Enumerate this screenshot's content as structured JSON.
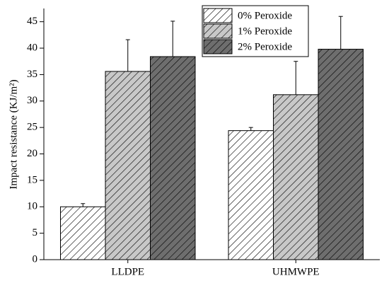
{
  "chart_data": {
    "type": "bar",
    "y_label": "Impact resistance (KJ/m²)",
    "categories": [
      "LLDPE",
      "UHMWPE"
    ],
    "series": [
      {
        "name": "0% Peroxide",
        "color": "#ffffff",
        "values": [
          10,
          24.4
        ],
        "errors": [
          0.6,
          0.6
        ]
      },
      {
        "name": "1% Peroxide",
        "color": "#c8c8c8",
        "values": [
          35.6,
          31.2
        ],
        "errors": [
          6.0,
          6.3
        ]
      },
      {
        "name": "2% Peroxide",
        "color": "#6e6e6e",
        "values": [
          38.4,
          39.8
        ],
        "errors": [
          6.7,
          6.2
        ]
      }
    ],
    "ylim": [
      0,
      47.5
    ],
    "yticks": [
      0,
      5,
      10,
      15,
      20,
      25,
      30,
      35,
      40,
      45
    ],
    "hatch": true,
    "legend": "top"
  }
}
